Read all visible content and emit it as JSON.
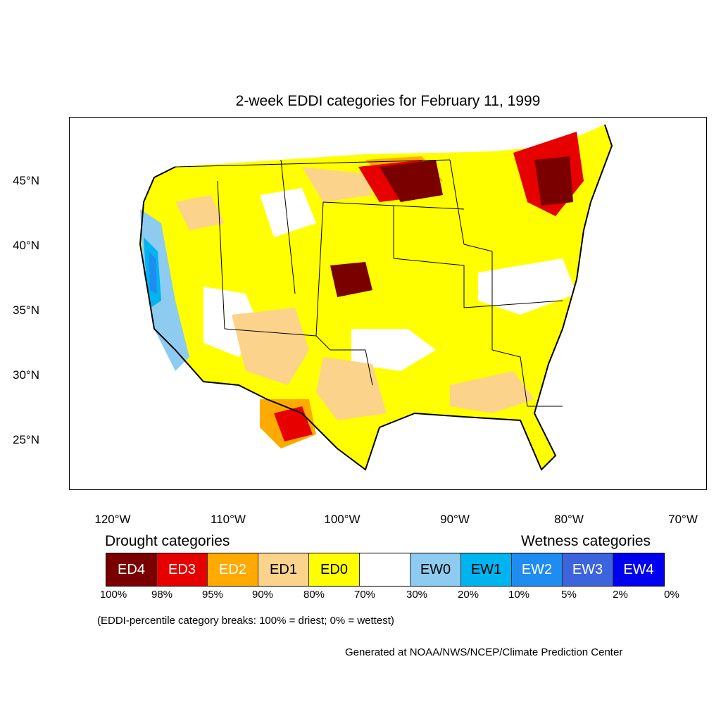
{
  "title": "2-week EDDI categories for February 11, 1999",
  "lat_labels": [
    "45°N",
    "40°N",
    "35°N",
    "30°N",
    "25°N"
  ],
  "lon_labels": [
    "120°W",
    "110°W",
    "100°W",
    "90°W",
    "80°W",
    "70°W"
  ],
  "legend": {
    "drought_heading": "Drought categories",
    "wetness_heading": "Wetness categories",
    "categories": [
      {
        "label": "ED4",
        "color": "#7a0000",
        "text_color": "#ffffff"
      },
      {
        "label": "ED3",
        "color": "#e60000",
        "text_color": "#ffffff"
      },
      {
        "label": "ED2",
        "color": "#ffaa00",
        "text_color": "#ffffff"
      },
      {
        "label": "ED1",
        "color": "#fcd38b",
        "text_color": "#000000"
      },
      {
        "label": "ED0",
        "color": "#ffff00",
        "text_color": "#000000"
      },
      {
        "label": "",
        "color": "#ffffff",
        "text_color": "#000000"
      },
      {
        "label": "EW0",
        "color": "#8ecbf0",
        "text_color": "#000000"
      },
      {
        "label": "EW1",
        "color": "#00b4f0",
        "text_color": "#000000"
      },
      {
        "label": "EW2",
        "color": "#1e8cf0",
        "text_color": "#ffffff"
      },
      {
        "label": "EW3",
        "color": "#3c64dc",
        "text_color": "#ffffff"
      },
      {
        "label": "EW4",
        "color": "#0000f0",
        "text_color": "#ffffff"
      }
    ],
    "breaks": [
      "100%",
      "98%",
      "95%",
      "90%",
      "80%",
      "70%",
      "30%",
      "20%",
      "10%",
      "5%",
      "2%",
      "0%"
    ]
  },
  "note": "(EDDI-percentile category breaks: 100% = driest; 0% = wettest)",
  "credit": "Generated at NOAA/NWS/NCEP/Climate Prediction Center"
}
